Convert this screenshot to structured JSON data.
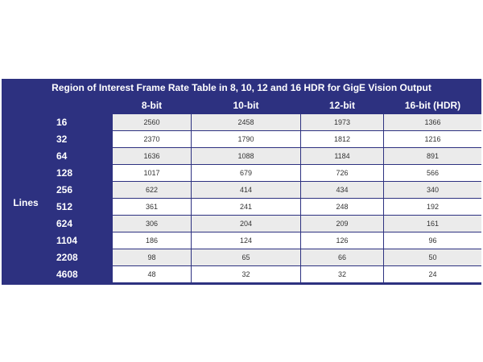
{
  "title": "Region of Interest Frame Rate Table in 8, 10, 12 and 16 HDR for GigE Vision Output",
  "side_label": "Lines",
  "chart_data": {
    "type": "table",
    "title": "Region of Interest Frame Rate Table in 8, 10, 12 and 16 HDR for GigE Vision Output",
    "columns": [
      "8-bit",
      "10-bit",
      "12-bit",
      "16-bit (HDR)"
    ],
    "row_header": "Lines",
    "rows": [
      {
        "label": "16",
        "values": [
          "2560",
          "2458",
          "1973",
          "1366"
        ]
      },
      {
        "label": "32",
        "values": [
          "2370",
          "1790",
          "1812",
          "1216"
        ]
      },
      {
        "label": "64",
        "values": [
          "1636",
          "1088",
          "1184",
          "891"
        ]
      },
      {
        "label": "128",
        "values": [
          "1017",
          "679",
          "726",
          "566"
        ]
      },
      {
        "label": "256",
        "values": [
          "622",
          "414",
          "434",
          "340"
        ]
      },
      {
        "label": "512",
        "values": [
          "361",
          "241",
          "248",
          "192"
        ]
      },
      {
        "label": "624",
        "values": [
          "306",
          "204",
          "209",
          "161"
        ]
      },
      {
        "label": "1104",
        "values": [
          "186",
          "124",
          "126",
          "96"
        ]
      },
      {
        "label": "2208",
        "values": [
          "98",
          "65",
          "66",
          "50"
        ]
      },
      {
        "label": "4608",
        "values": [
          "48",
          "32",
          "32",
          "24"
        ]
      }
    ]
  },
  "colors": {
    "header_bg": "#2d3180",
    "row_odd": "#ebebeb",
    "row_even": "#ffffff",
    "text": "#333333"
  }
}
